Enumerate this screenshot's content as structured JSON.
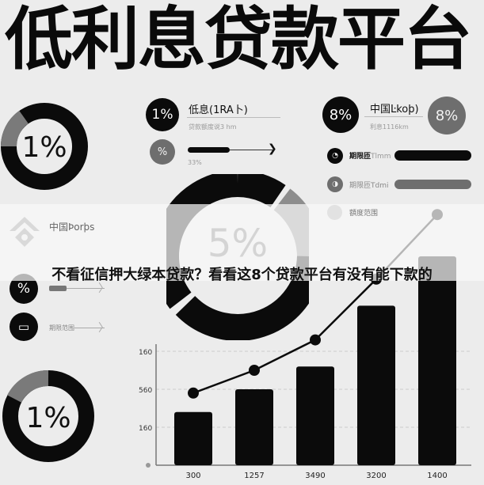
{
  "title": "低利息贷款平台",
  "top_left_donut": {
    "label": "1%",
    "fill_fraction": 0.85
  },
  "left_panel": {
    "rate_badge": "1%",
    "rate_title": "低息(1RA卜)",
    "rate_subtext": "贷款额度说3 hm",
    "percent_badge": "%",
    "progress_label": "33%",
    "progress_value": 0.33
  },
  "right_panel": {
    "badge_left": "8%",
    "title": "中国Ŀkoþ)",
    "subtext": "利息1116km",
    "badge_right": "8%",
    "rows": [
      {
        "label": "期限匝",
        "suffix": "Tlmm",
        "bar_color": "#0b0b0b"
      },
      {
        "label": "期限匝",
        "suffix": "Tdmi",
        "bar_color": "#6e6e6e"
      },
      {
        "label": "額度范围",
        "suffix": "",
        "bar_color": ""
      }
    ]
  },
  "center_donut": {
    "label": "5%"
  },
  "left_list": {
    "header": "中国Þorþs",
    "items": [
      {
        "badge": "%",
        "label": ""
      },
      {
        "badge": "",
        "label": "期限范围"
      }
    ]
  },
  "bottom_left_donut": {
    "label": "1%",
    "fill_fraction": 0.85
  },
  "banner": {
    "text": "不看征信押大绿本贷款？看看这8个贷款平台有没有能下款的"
  },
  "chart_data": {
    "type": "bar",
    "categories": [
      "300",
      "1257",
      "3490",
      "3200",
      "1400"
    ],
    "series": [
      {
        "type": "bar",
        "values": [
          1.4,
          2.0,
          2.6,
          4.2,
          5.5
        ]
      },
      {
        "type": "line",
        "values": [
          1.9,
          2.5,
          3.3,
          4.9,
          6.6
        ]
      }
    ],
    "y_tick_labels": [
      "160",
      "560",
      "160"
    ],
    "y_tick_levels": [
      1,
      2,
      3
    ],
    "ylim": [
      0,
      6.8
    ],
    "grid": true,
    "colors": {
      "bar": "#0b0b0b",
      "line": "#0b0b0b"
    }
  }
}
